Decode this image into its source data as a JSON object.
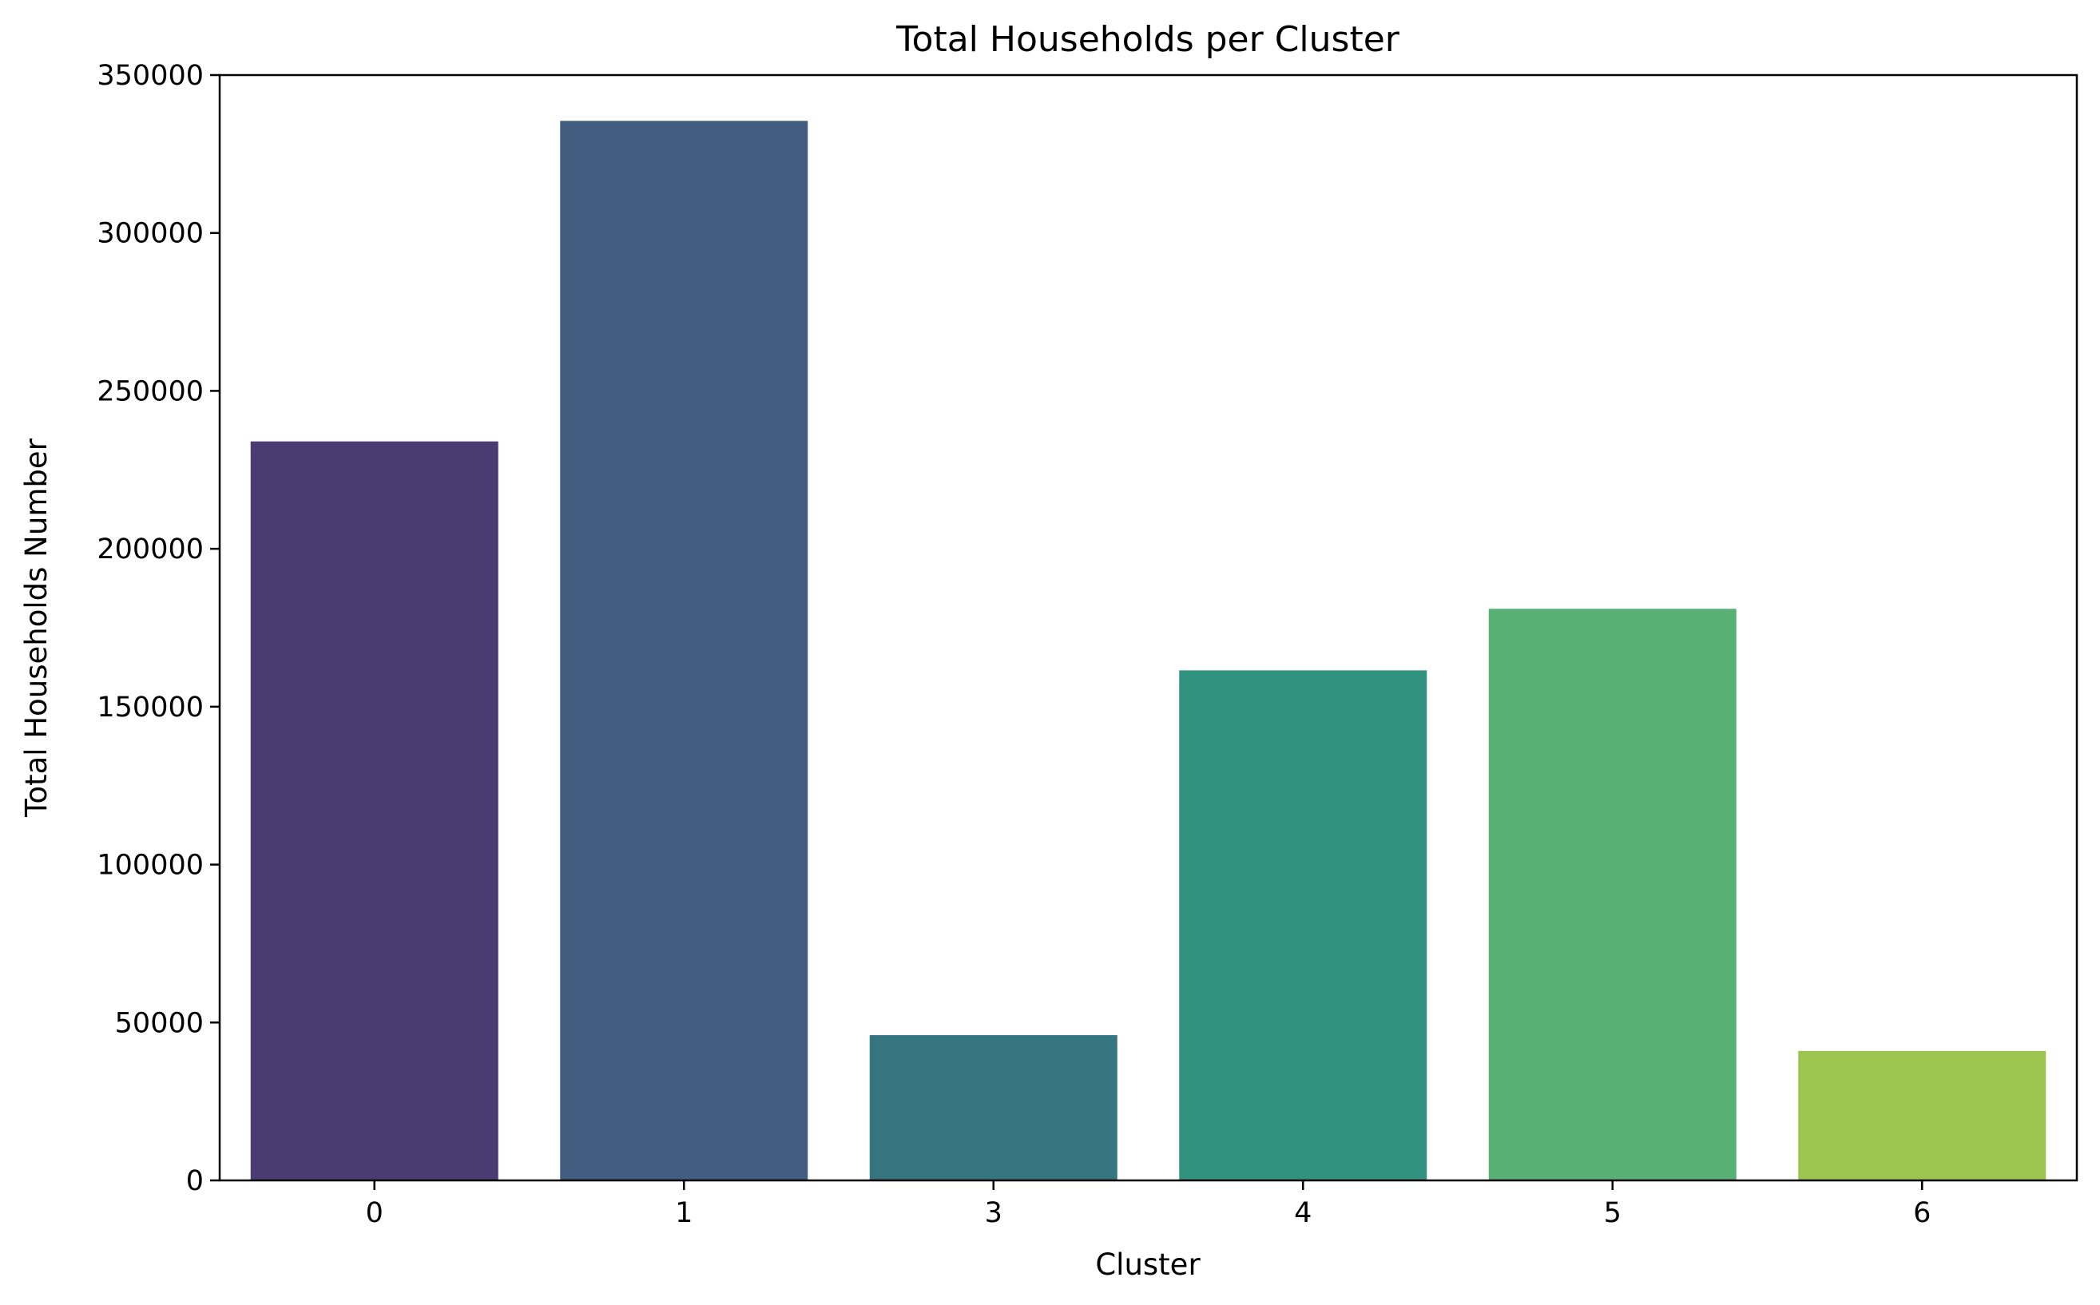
{
  "chart_data": {
    "type": "bar",
    "title": "Total Households per Cluster",
    "xlabel": "Cluster",
    "ylabel": "Total Households Number",
    "categories": [
      "0",
      "1",
      "3",
      "4",
      "5",
      "6"
    ],
    "values": [
      234000,
      335500,
      46000,
      161500,
      181000,
      41000
    ],
    "colors": [
      "#4a3b73",
      "#415e80",
      "#34757f",
      "#329280",
      "#58b074",
      "#9bc54e"
    ],
    "ylim": [
      0,
      350000
    ],
    "yticks": [
      0,
      50000,
      100000,
      150000,
      200000,
      250000,
      300000,
      350000
    ],
    "ytick_labels": [
      "0",
      "50000",
      "100000",
      "150000",
      "200000",
      "250000",
      "300000",
      "350000"
    ],
    "grid": false,
    "legend": "none"
  }
}
